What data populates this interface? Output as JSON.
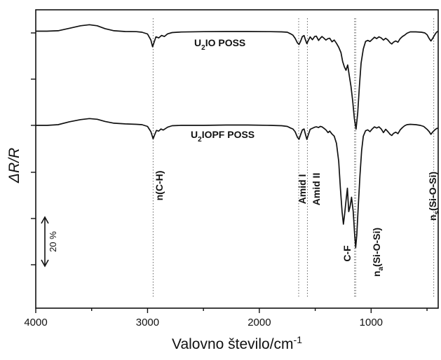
{
  "chart_data": {
    "type": "line",
    "xlabel": "Valovno število/cm",
    "xlabel_sup": "-1",
    "ylabel": "ΔR/R",
    "xlim": [
      4000,
      400
    ],
    "x_ticks": [
      4000,
      3000,
      2000,
      1000
    ],
    "x_reversed": true,
    "grid": false,
    "series": [
      {
        "name_main": "U",
        "name_sub": "2",
        "name_rest": "IO POSS",
        "points": [
          [
            4000,
            1.0
          ],
          [
            3900,
            1.0
          ],
          [
            3800,
            1.2
          ],
          [
            3700,
            2.6
          ],
          [
            3600,
            4.0
          ],
          [
            3520,
            4.6
          ],
          [
            3450,
            4.0
          ],
          [
            3380,
            2.4
          ],
          [
            3300,
            1.2
          ],
          [
            3200,
            0.8
          ],
          [
            3100,
            0.7
          ],
          [
            3050,
            0.4
          ],
          [
            3000,
            -0.6
          ],
          [
            2970,
            -4.0
          ],
          [
            2955,
            -7.8
          ],
          [
            2940,
            -5.0
          ],
          [
            2925,
            -2.2
          ],
          [
            2900,
            -2.8
          ],
          [
            2875,
            -1.4
          ],
          [
            2850,
            -2.0
          ],
          [
            2820,
            -0.5
          ],
          [
            2780,
            0.2
          ],
          [
            2700,
            0.5
          ],
          [
            2500,
            0.7
          ],
          [
            2300,
            0.8
          ],
          [
            2100,
            0.8
          ],
          [
            1900,
            0.7
          ],
          [
            1800,
            0.6
          ],
          [
            1750,
            0.4
          ],
          [
            1720,
            -0.5
          ],
          [
            1700,
            -1.2
          ],
          [
            1680,
            -3.0
          ],
          [
            1660,
            -5.5
          ],
          [
            1645,
            -6.5
          ],
          [
            1630,
            -4.5
          ],
          [
            1615,
            -2.0
          ],
          [
            1600,
            -1.5
          ],
          [
            1590,
            -3.5
          ],
          [
            1575,
            -6.0
          ],
          [
            1560,
            -4.0
          ],
          [
            1545,
            -2.2
          ],
          [
            1525,
            -3.8
          ],
          [
            1505,
            -2.0
          ],
          [
            1490,
            -1.8
          ],
          [
            1470,
            -4.2
          ],
          [
            1455,
            -3.0
          ],
          [
            1440,
            -2.0
          ],
          [
            1425,
            -2.8
          ],
          [
            1405,
            -4.0
          ],
          [
            1385,
            -3.2
          ],
          [
            1370,
            -3.0
          ],
          [
            1350,
            -5.0
          ],
          [
            1330,
            -4.0
          ],
          [
            1310,
            -5.8
          ],
          [
            1290,
            -8.0
          ],
          [
            1270,
            -11.0
          ],
          [
            1255,
            -16.0
          ],
          [
            1240,
            -19.0
          ],
          [
            1225,
            -21.0
          ],
          [
            1210,
            -18.0
          ],
          [
            1195,
            -24.0
          ],
          [
            1180,
            -30.0
          ],
          [
            1165,
            -38.0
          ],
          [
            1150,
            -48.0
          ],
          [
            1135,
            -54.0
          ],
          [
            1120,
            -45.0
          ],
          [
            1105,
            -30.0
          ],
          [
            1090,
            -17.0
          ],
          [
            1070,
            -9.0
          ],
          [
            1050,
            -4.8
          ],
          [
            1030,
            -4.2
          ],
          [
            1010,
            -4.8
          ],
          [
            990,
            -3.6
          ],
          [
            970,
            -2.4
          ],
          [
            950,
            -3.2
          ],
          [
            930,
            -2.2
          ],
          [
            910,
            -2.8
          ],
          [
            890,
            -4.0
          ],
          [
            870,
            -3.0
          ],
          [
            850,
            -4.0
          ],
          [
            830,
            -5.5
          ],
          [
            815,
            -6.2
          ],
          [
            800,
            -5.2
          ],
          [
            780,
            -4.5
          ],
          [
            760,
            -5.2
          ],
          [
            740,
            -3.2
          ],
          [
            720,
            -2.0
          ],
          [
            700,
            -1.2
          ],
          [
            680,
            -0.2
          ],
          [
            650,
            0.6
          ],
          [
            600,
            0.6
          ],
          [
            550,
            0.4
          ],
          [
            520,
            0.0
          ],
          [
            500,
            -1.0
          ],
          [
            480,
            -3.2
          ],
          [
            465,
            -4.5
          ],
          [
            450,
            -3.2
          ],
          [
            430,
            -1.0
          ],
          [
            415,
            0.4
          ],
          [
            400,
            1.0
          ]
        ]
      },
      {
        "name_main": "U",
        "name_sub": "2",
        "name_rest": "IOPF POSS",
        "points": [
          [
            4000,
            -40.0
          ],
          [
            3900,
            -40.0
          ],
          [
            3800,
            -39.6
          ],
          [
            3700,
            -38.0
          ],
          [
            3600,
            -36.8
          ],
          [
            3520,
            -36.2
          ],
          [
            3450,
            -36.6
          ],
          [
            3380,
            -37.8
          ],
          [
            3300,
            -38.8
          ],
          [
            3200,
            -39.2
          ],
          [
            3100,
            -39.4
          ],
          [
            3050,
            -39.6
          ],
          [
            3000,
            -40.6
          ],
          [
            2970,
            -43.5
          ],
          [
            2950,
            -47.5
          ],
          [
            2935,
            -45.0
          ],
          [
            2920,
            -42.8
          ],
          [
            2900,
            -43.2
          ],
          [
            2880,
            -42.0
          ],
          [
            2860,
            -42.6
          ],
          [
            2820,
            -41.0
          ],
          [
            2780,
            -40.2
          ],
          [
            2700,
            -40.0
          ],
          [
            2500,
            -40.0
          ],
          [
            2300,
            -39.8
          ],
          [
            2100,
            -39.8
          ],
          [
            1900,
            -40.0
          ],
          [
            1800,
            -40.2
          ],
          [
            1750,
            -40.6
          ],
          [
            1720,
            -41.5
          ],
          [
            1700,
            -42.0
          ],
          [
            1680,
            -43.5
          ],
          [
            1660,
            -46.5
          ],
          [
            1645,
            -47.8
          ],
          [
            1630,
            -45.0
          ],
          [
            1615,
            -42.5
          ],
          [
            1600,
            -42.0
          ],
          [
            1590,
            -44.5
          ],
          [
            1575,
            -47.8
          ],
          [
            1560,
            -45.0
          ],
          [
            1545,
            -42.2
          ],
          [
            1525,
            -41.6
          ],
          [
            1505,
            -41.0
          ],
          [
            1490,
            -40.8
          ],
          [
            1470,
            -41.2
          ],
          [
            1455,
            -40.6
          ],
          [
            1440,
            -40.8
          ],
          [
            1425,
            -41.5
          ],
          [
            1405,
            -42.5
          ],
          [
            1385,
            -44.0
          ],
          [
            1370,
            -43.2
          ],
          [
            1350,
            -44.8
          ],
          [
            1330,
            -46.0
          ],
          [
            1310,
            -50.0
          ],
          [
            1290,
            -60.0
          ],
          [
            1275,
            -75.0
          ],
          [
            1260,
            -88.0
          ],
          [
            1248,
            -95.0
          ],
          [
            1238,
            -90.0
          ],
          [
            1225,
            -82.0
          ],
          [
            1212,
            -75.0
          ],
          [
            1200,
            -88.0
          ],
          [
            1188,
            -85.0
          ],
          [
            1175,
            -80.0
          ],
          [
            1160,
            -88.0
          ],
          [
            1148,
            -100.0
          ],
          [
            1138,
            -108.0
          ],
          [
            1128,
            -101.0
          ],
          [
            1115,
            -85.0
          ],
          [
            1100,
            -68.0
          ],
          [
            1085,
            -54.0
          ],
          [
            1070,
            -46.0
          ],
          [
            1050,
            -43.0
          ],
          [
            1030,
            -42.5
          ],
          [
            1010,
            -43.5
          ],
          [
            990,
            -42.0
          ],
          [
            970,
            -40.8
          ],
          [
            950,
            -41.5
          ],
          [
            930,
            -40.8
          ],
          [
            910,
            -42.0
          ],
          [
            890,
            -44.0
          ],
          [
            870,
            -42.2
          ],
          [
            850,
            -43.5
          ],
          [
            830,
            -45.0
          ],
          [
            815,
            -45.6
          ],
          [
            800,
            -44.5
          ],
          [
            780,
            -43.8
          ],
          [
            760,
            -44.6
          ],
          [
            740,
            -42.5
          ],
          [
            720,
            -41.2
          ],
          [
            700,
            -40.2
          ],
          [
            680,
            -39.6
          ],
          [
            650,
            -39.4
          ],
          [
            600,
            -39.6
          ],
          [
            560,
            -40.0
          ],
          [
            530,
            -40.6
          ],
          [
            500,
            -42.2
          ],
          [
            480,
            -43.5
          ],
          [
            465,
            -45.0
          ],
          [
            450,
            -43.8
          ],
          [
            430,
            -42.5
          ],
          [
            415,
            -41.8
          ],
          [
            400,
            -41.5
          ]
        ]
      }
    ],
    "reference_lines_x": [
      2950,
      1648,
      1570,
      1148,
      1138,
      440
    ],
    "annotations": [
      {
        "text": "n(C-H)",
        "x": 2950
      },
      {
        "text": "Amid I",
        "x": 1660
      },
      {
        "text": "Amid II",
        "x": 1585
      },
      {
        "text": "C-F",
        "x": 1250
      },
      {
        "main": "n",
        "sub": "a",
        "rest": "(Si-O-Si)",
        "x": 1100
      },
      {
        "main": "n",
        "sub": "s",
        "rest": "(Si-O-Si)",
        "x": 430
      }
    ],
    "scale_bar_label": "20 %"
  }
}
